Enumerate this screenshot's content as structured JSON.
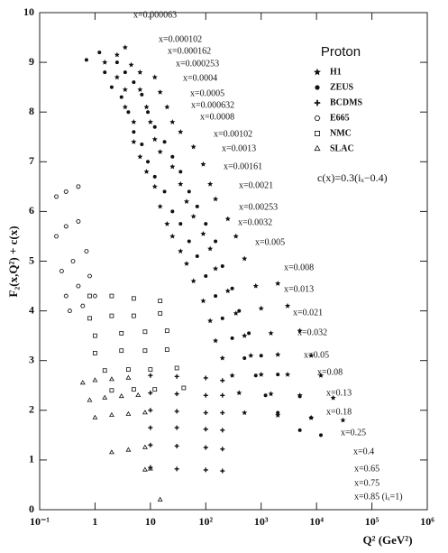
{
  "chart_data": {
    "type": "scatter",
    "x_label": "Q² (GeV²)",
    "y_label": "F₂(x,Q²) + c(x)",
    "legend_title": "Proton",
    "legend_position": "right-top",
    "annotation": "c(x)=0.3(iₓ−0.4)",
    "log_x": true,
    "xlim": [
      0.1,
      1000000
    ],
    "xticks": [
      {
        "value": 0.1,
        "label": "10⁻¹"
      },
      1,
      10,
      {
        "value": 100,
        "label": "10²"
      },
      {
        "value": 1000,
        "label": "10³"
      },
      {
        "value": 10000,
        "label": "10⁴"
      },
      {
        "value": 100000,
        "label": "10⁵"
      },
      {
        "value": 1000000,
        "label": "10⁶"
      }
    ],
    "ylim": [
      0,
      10
    ],
    "yticks": [
      0,
      1,
      2,
      3,
      4,
      5,
      6,
      7,
      8,
      9,
      10
    ],
    "bin_labels": [
      "x=0.000063",
      "x=0.000102",
      "x=0.000162",
      "x=0.000253",
      "x=0.0004",
      "x=0.0005",
      "x=0.000632",
      "x=0.0008",
      "x=0.00102",
      "x=0.0013",
      "x=0.00161",
      "x=0.0021",
      "x=0.00253",
      "x=0.0032",
      "x=0.005",
      "x=0.008",
      "x=0.013",
      "x=0.021",
      "x=0.032",
      "x=0.05",
      "x=0.08",
      "x=0.13",
      "x=0.18",
      "x=0.25",
      "x=0.4",
      "x=0.65",
      "x=0.75",
      "x=0.85 (iₓ=1)"
    ],
    "series": [
      {
        "name": "H1",
        "marker": "star",
        "color": "#111111",
        "x": [
          1.5,
          2.5,
          3.5,
          2.5,
          4.5,
          3.5,
          6.5,
          3.5,
          6.5,
          12,
          5,
          8.5,
          15,
          5,
          10,
          20,
          6.5,
          12,
          25,
          8.5,
          15,
          35,
          12,
          25,
          60,
          15,
          35,
          90,
          20,
          45,
          120,
          25,
          60,
          150,
          35,
          90,
          250,
          45,
          120,
          350,
          60,
          150,
          500,
          90,
          250,
          800,
          2000,
          120,
          350,
          1000,
          3000,
          150,
          500,
          1500,
          5000,
          200,
          650,
          2000,
          8000,
          300,
          1000,
          3000,
          12000,
          400,
          1500,
          5000,
          20000,
          500,
          2000,
          8000,
          30000
        ],
        "values": [
          9.0,
          9.15,
          9.3,
          8.7,
          8.95,
          8.45,
          8.8,
          8.1,
          8.45,
          8.7,
          7.8,
          8.1,
          8.4,
          7.4,
          7.8,
          8.1,
          7.1,
          7.45,
          7.8,
          6.8,
          7.2,
          7.6,
          6.5,
          6.9,
          7.3,
          6.1,
          6.55,
          6.95,
          5.75,
          6.2,
          6.55,
          5.5,
          5.9,
          6.25,
          5.2,
          5.55,
          5.85,
          4.95,
          5.25,
          5.5,
          4.6,
          4.85,
          5.05,
          4.2,
          4.4,
          4.5,
          4.55,
          3.8,
          3.95,
          4.05,
          4.1,
          3.4,
          3.5,
          3.55,
          3.6,
          3.05,
          3.1,
          3.12,
          3.1,
          2.7,
          2.72,
          2.72,
          2.7,
          2.35,
          2.33,
          2.3,
          2.25,
          1.95,
          1.9,
          1.85,
          1.8
        ]
      },
      {
        "name": "ZEUS",
        "marker": "dot",
        "color": "#111111",
        "x": [
          0.7,
          1.2,
          1.5,
          2.5,
          2,
          3.5,
          3,
          5,
          4,
          7,
          5,
          9,
          7,
          12,
          9,
          18,
          12,
          25,
          18,
          35,
          25,
          50,
          35,
          70,
          50,
          100,
          70,
          150,
          100,
          200,
          150,
          300,
          200,
          400,
          300,
          600,
          500,
          1000,
          800,
          2000,
          1200,
          5000,
          2000,
          8000,
          5000,
          12000
        ],
        "values": [
          9.05,
          9.2,
          8.8,
          9.0,
          8.5,
          8.8,
          8.3,
          8.6,
          8.0,
          8.35,
          7.6,
          8.0,
          7.35,
          7.7,
          7.0,
          7.4,
          6.7,
          7.1,
          6.4,
          6.8,
          6.0,
          6.4,
          5.75,
          6.1,
          5.4,
          5.75,
          5.1,
          5.4,
          4.7,
          4.9,
          4.3,
          4.45,
          3.85,
          4.0,
          3.45,
          3.55,
          3.05,
          3.1,
          2.7,
          2.72,
          2.3,
          2.28,
          1.95,
          1.85,
          1.6,
          1.5
        ]
      },
      {
        "name": "BCDMS",
        "marker": "cross",
        "color": "#111111",
        "x": [
          10,
          30,
          100,
          200,
          10,
          30,
          100,
          200,
          10,
          30,
          100,
          200,
          10,
          30,
          100,
          200,
          10,
          30,
          100,
          200,
          10,
          30,
          100,
          200
        ],
        "values": [
          2.7,
          2.68,
          2.65,
          2.6,
          2.35,
          2.33,
          2.3,
          2.3,
          2.0,
          1.98,
          1.95,
          1.95,
          1.65,
          1.65,
          1.62,
          1.6,
          1.3,
          1.28,
          1.25,
          1.22,
          0.85,
          0.82,
          0.8,
          0.78
        ]
      },
      {
        "name": "E665",
        "marker": "hexagon",
        "color": "#111111",
        "x": [
          0.2,
          0.3,
          0.5,
          0.2,
          0.3,
          0.5,
          0.25,
          0.4,
          0.7,
          0.3,
          0.5,
          0.8,
          0.35,
          0.6,
          1
        ],
        "values": [
          6.3,
          6.4,
          6.5,
          5.5,
          5.7,
          5.8,
          4.8,
          5.0,
          5.2,
          4.3,
          4.5,
          4.7,
          4.0,
          4.1,
          4.3
        ]
      },
      {
        "name": "NMC",
        "marker": "square",
        "color": "#111111",
        "x": [
          0.8,
          2,
          5,
          15,
          0.8,
          2,
          5,
          15,
          1,
          3,
          8,
          20,
          1,
          3,
          8,
          20,
          1.5,
          4,
          10,
          30,
          2,
          5,
          12,
          40
        ],
        "values": [
          4.3,
          4.3,
          4.25,
          4.2,
          3.85,
          3.9,
          3.9,
          3.95,
          3.5,
          3.55,
          3.58,
          3.6,
          3.15,
          3.2,
          3.2,
          3.22,
          2.8,
          2.82,
          2.82,
          2.85,
          2.4,
          2.42,
          2.42,
          2.45
        ]
      },
      {
        "name": "SLAC",
        "marker": "triangle",
        "color": "#111111",
        "x": [
          0.6,
          1,
          2,
          4,
          0.8,
          1.5,
          3,
          6,
          1,
          2,
          4,
          8,
          2,
          4,
          8,
          8,
          10,
          15
        ],
        "values": [
          2.55,
          2.6,
          2.62,
          2.65,
          2.2,
          2.25,
          2.28,
          2.3,
          1.85,
          1.9,
          1.92,
          1.95,
          1.15,
          1.2,
          1.25,
          0.8,
          0.82,
          0.2
        ]
      }
    ]
  }
}
